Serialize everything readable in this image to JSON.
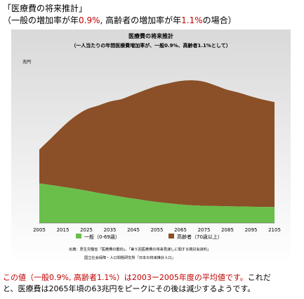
{
  "heading": {
    "title": "「医療費の将来推計」",
    "subtitle_prefix": "（一般の増加率が年",
    "rate_general": "0.9%",
    "subtitle_mid": ", 高齢者の増加率が年",
    "rate_elderly": "1.1%",
    "subtitle_suffix": "の場合）"
  },
  "chart_data": {
    "type": "area",
    "stacked": true,
    "title": "医療費の将来推計",
    "subtitle": "（一人当たりの年間医療費増加率が、一般0.9%、高齢者1.1%として）",
    "ylabel": "兆円",
    "xlabel": "",
    "x": [
      2005,
      2010,
      2015,
      2020,
      2025,
      2030,
      2035,
      2040,
      2045,
      2050,
      2055,
      2060,
      2065,
      2070,
      2075,
      2080,
      2085,
      2090,
      2095,
      2100,
      2105
    ],
    "xticks": [
      "2005",
      "2015",
      "2025",
      "2035",
      "2045",
      "2055",
      "2065",
      "2075",
      "2085",
      "2095",
      "2105"
    ],
    "ylim": [
      0,
      70
    ],
    "grid": false,
    "legend_position": "bottom",
    "series": [
      {
        "name": "一般（0-69歳）",
        "color": "#6abf4b",
        "values": [
          17.5,
          16.8,
          16,
          15.2,
          14.3,
          13.3,
          12.5,
          11.6,
          10.8,
          10,
          9.3,
          8.7,
          8.2,
          7.8,
          7.6,
          7.5,
          7.4,
          7.3,
          7.2,
          7.1,
          7
        ]
      },
      {
        "name": "高齢者（70歳以上）",
        "color": "#8b5027",
        "values": [
          15,
          20.7,
          26.6,
          31.8,
          35.9,
          38.6,
          41.2,
          43.2,
          46,
          48.8,
          51.3,
          53.1,
          54.6,
          55.3,
          54.9,
          53.3,
          51.5,
          50.3,
          48.8,
          47.5,
          46.5
        ]
      }
    ],
    "source_lines": [
      "出典：厚生労働省「医療費の動向」、「第５回医療費の将来見通しに関する検討会資料」",
      "国立社会保障・人口問題研究所「日本の将来推計人口」"
    ]
  },
  "note": {
    "line1_red": "この値（一般0.9%, 高齢者1.1%）は2003ー2005年度の平均値です。",
    "line1_black": "これだ",
    "line2": "と、医療費は2065年頃の63兆円をピークにその後は減少するようです。"
  }
}
